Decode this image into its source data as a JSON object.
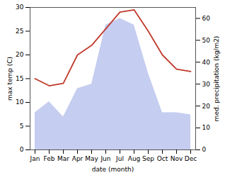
{
  "chart_data": {
    "type": "line",
    "categories": [
      "Jan",
      "Feb",
      "Mar",
      "Apr",
      "May",
      "Jun",
      "Jul",
      "Aug",
      "Sep",
      "Oct",
      "Nov",
      "Dec"
    ],
    "series": [
      {
        "name": "precipitation",
        "type": "area",
        "axis": "y2",
        "color": "#c5cdf0",
        "values": [
          17.0,
          22.0,
          15.0,
          28.0,
          30.0,
          57.0,
          60.0,
          57.0,
          35.0,
          17.0,
          17.0,
          16.0
        ]
      },
      {
        "name": "max temp",
        "type": "line",
        "color": "#c0392b",
        "values": [
          15.0,
          13.5,
          14.0,
          20.0,
          22.0,
          25.5,
          29.0,
          29.5,
          25.0,
          20.0,
          17.0,
          16.5
        ]
      }
    ],
    "xlabel": "date (month)",
    "ylabel": "max temp (C)",
    "y2label": "med. precipitation (kg/m2)",
    "ylim": [
      0,
      30
    ],
    "yticks": [
      0,
      5,
      10,
      15,
      20,
      25,
      30
    ],
    "y2lim": [
      0,
      65
    ],
    "y2ticks": [
      0,
      10,
      20,
      30,
      40,
      50,
      60
    ]
  }
}
